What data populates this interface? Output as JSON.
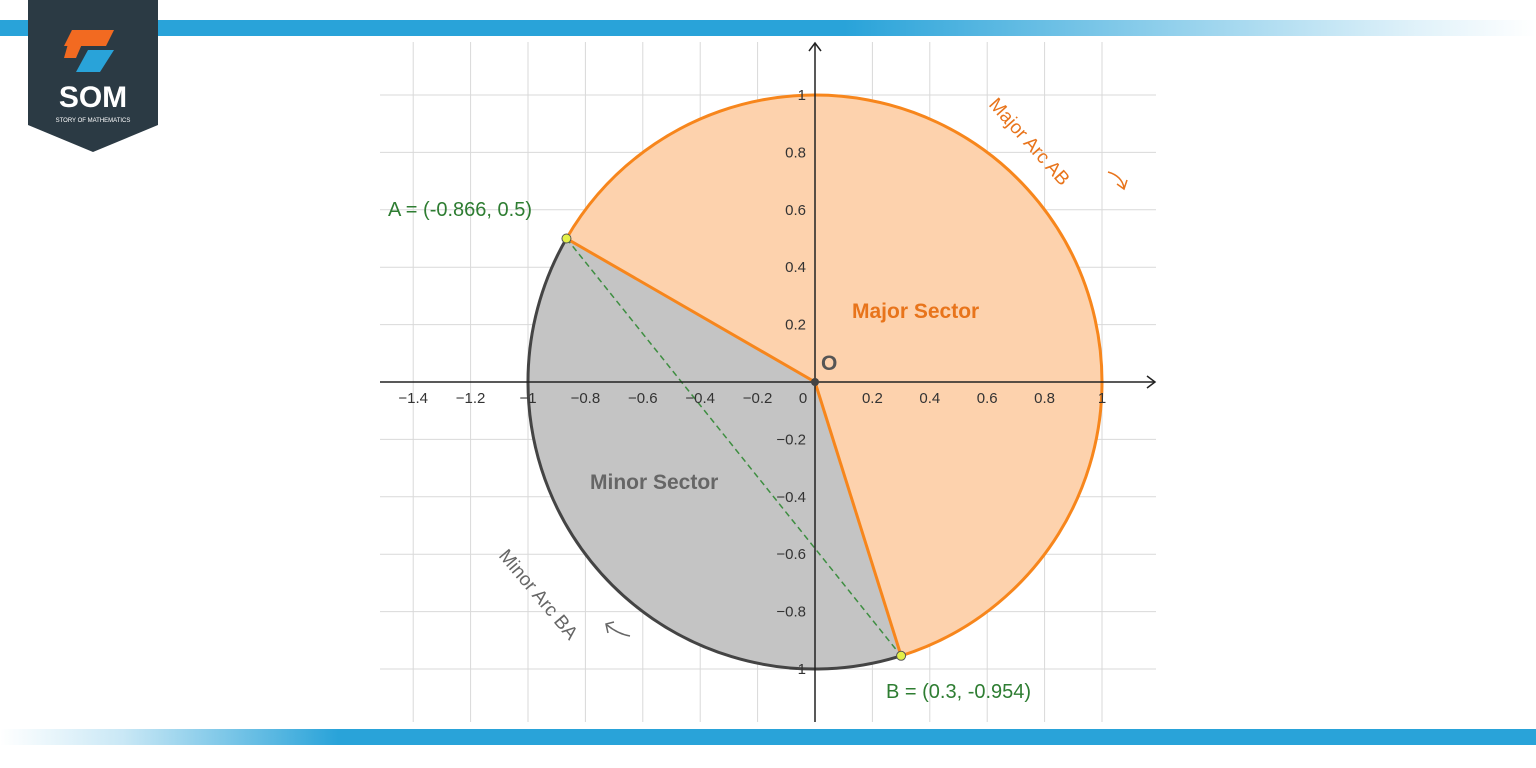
{
  "logo": {
    "letters": "SOM",
    "tagline": "STORY OF MATHEMATICS"
  },
  "axes": {
    "x_ticks": [
      "−1.4",
      "−1.2",
      "−1",
      "−0.8",
      "−0.6",
      "−0.4",
      "−0.2",
      "0",
      "0.2",
      "0.4",
      "0.6",
      "0.8",
      "1"
    ],
    "y_ticks": [
      "1",
      "0.8",
      "0.6",
      "0.4",
      "0.2",
      "−0.2",
      "−0.4",
      "−0.6",
      "−0.8",
      "−1"
    ]
  },
  "labels": {
    "origin": "O",
    "point_a": "A = (-0.866, 0.5)",
    "point_b": "B = (0.3, -0.954)",
    "major_sector": "Major Sector",
    "minor_sector": "Minor Sector",
    "major_arc": "Major Arc AB",
    "minor_arc": "Minor Arc BA"
  },
  "points": {
    "A": {
      "x": -0.866,
      "y": 0.5
    },
    "B": {
      "x": 0.3,
      "y": -0.954
    },
    "O": {
      "x": 0,
      "y": 0
    }
  },
  "circle": {
    "radius": 1
  },
  "colors": {
    "brand_blue": "#29a3d9",
    "logo_dark": "#2b3a44",
    "logo_orange": "#f26a21",
    "major_fill": "#fdd2ad",
    "major_stroke": "#f7861c",
    "minor_fill": "#c4c4c4",
    "minor_stroke": "#444444",
    "chord": "#3e8e41",
    "point_fill": "#e3f048",
    "label_green": "#2e7d32",
    "major_text": "#e8741b",
    "minor_text": "#666666"
  }
}
